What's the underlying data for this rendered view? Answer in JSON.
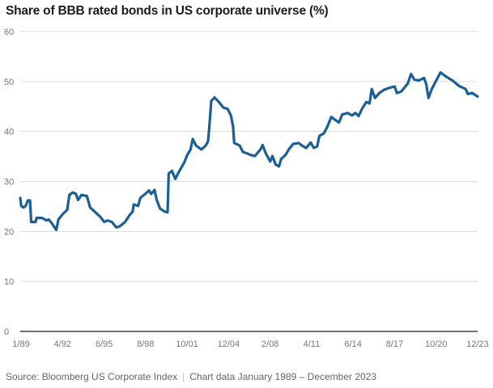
{
  "chart_data": {
    "type": "line",
    "title": "Share of BBB rated bonds in US corporate universe (%)",
    "xlabel": "",
    "ylabel": "",
    "ylim": [
      0,
      60
    ],
    "yticks": [
      0,
      10,
      20,
      30,
      40,
      50,
      60
    ],
    "xlim": [
      "1989-01",
      "2023-12"
    ],
    "xtick_labels": [
      "1/89",
      "4/92",
      "6/95",
      "8/98",
      "10/01",
      "12/04",
      "2/08",
      "4/11",
      "6/14",
      "8/17",
      "10/20",
      "12/23"
    ],
    "grid": "horizontal",
    "line_color": "#1b5f97",
    "series": [
      {
        "points": [
          [
            "1989-01",
            26.7
          ],
          [
            "1989-02",
            25.1
          ],
          [
            "1989-04",
            24.8
          ],
          [
            "1989-06",
            25.1
          ],
          [
            "1989-08",
            26.2
          ],
          [
            "1989-10",
            26.2
          ],
          [
            "1989-11",
            21.9
          ],
          [
            "1990-03",
            21.9
          ],
          [
            "1990-04",
            22.7
          ],
          [
            "1990-09",
            22.7
          ],
          [
            "1991-01",
            22.2
          ],
          [
            "1991-03",
            22.4
          ],
          [
            "1991-06",
            21.6
          ],
          [
            "1991-10",
            20.3
          ],
          [
            "1991-12",
            22.4
          ],
          [
            "1992-04",
            23.5
          ],
          [
            "1992-08",
            24.3
          ],
          [
            "1992-10",
            27.3
          ],
          [
            "1993-01",
            27.8
          ],
          [
            "1993-04",
            27.5
          ],
          [
            "1993-06",
            26.3
          ],
          [
            "1993-09",
            27.3
          ],
          [
            "1994-02",
            27.1
          ],
          [
            "1994-05",
            24.8
          ],
          [
            "1994-10",
            23.8
          ],
          [
            "1995-02",
            23.0
          ],
          [
            "1995-06",
            21.9
          ],
          [
            "1995-09",
            22.2
          ],
          [
            "1996-01",
            21.9
          ],
          [
            "1996-05",
            20.8
          ],
          [
            "1996-08",
            21.0
          ],
          [
            "1997-01",
            21.9
          ],
          [
            "1997-05",
            23.2
          ],
          [
            "1997-08",
            24.0
          ],
          [
            "1997-09",
            25.4
          ],
          [
            "1998-01",
            25.1
          ],
          [
            "1998-03",
            26.7
          ],
          [
            "1998-08",
            27.6
          ],
          [
            "1998-11",
            28.2
          ],
          [
            "1999-01",
            27.5
          ],
          [
            "1999-04",
            28.3
          ],
          [
            "1999-06",
            26.3
          ],
          [
            "1999-09",
            24.6
          ],
          [
            "2000-01",
            24.0
          ],
          [
            "2000-04",
            23.8
          ],
          [
            "2000-05",
            31.6
          ],
          [
            "2000-08",
            32.1
          ],
          [
            "2000-11",
            30.5
          ],
          [
            "2001-02",
            31.8
          ],
          [
            "2001-07",
            33.7
          ],
          [
            "2001-10",
            35.3
          ],
          [
            "2002-01",
            36.4
          ],
          [
            "2002-03",
            38.5
          ],
          [
            "2002-06",
            37.2
          ],
          [
            "2002-11",
            36.4
          ],
          [
            "2003-03",
            37.2
          ],
          [
            "2003-05",
            38.0
          ],
          [
            "2003-06",
            40.3
          ],
          [
            "2003-08",
            46.1
          ],
          [
            "2003-11",
            46.8
          ],
          [
            "2004-03",
            45.9
          ],
          [
            "2004-07",
            44.8
          ],
          [
            "2004-11",
            44.5
          ],
          [
            "2005-02",
            43.2
          ],
          [
            "2005-04",
            41.0
          ],
          [
            "2005-05",
            37.7
          ],
          [
            "2005-10",
            37.2
          ],
          [
            "2006-01",
            35.9
          ],
          [
            "2006-05",
            35.6
          ],
          [
            "2006-08",
            35.3
          ],
          [
            "2006-12",
            35.1
          ],
          [
            "2007-05",
            36.4
          ],
          [
            "2007-07",
            37.3
          ],
          [
            "2007-10",
            35.6
          ],
          [
            "2008-02",
            34.0
          ],
          [
            "2008-04",
            35.1
          ],
          [
            "2008-07",
            33.4
          ],
          [
            "2008-10",
            33.0
          ],
          [
            "2008-12",
            34.5
          ],
          [
            "2009-04",
            35.3
          ],
          [
            "2009-07",
            36.4
          ],
          [
            "2009-11",
            37.5
          ],
          [
            "2010-04",
            37.7
          ],
          [
            "2010-07",
            37.2
          ],
          [
            "2010-11",
            36.7
          ],
          [
            "2011-03",
            37.8
          ],
          [
            "2011-06",
            36.7
          ],
          [
            "2011-09",
            37.0
          ],
          [
            "2011-11",
            39.1
          ],
          [
            "2012-03",
            39.6
          ],
          [
            "2012-06",
            40.8
          ],
          [
            "2012-10",
            42.9
          ],
          [
            "2013-01",
            42.4
          ],
          [
            "2013-05",
            41.8
          ],
          [
            "2013-08",
            43.4
          ],
          [
            "2014-01",
            43.7
          ],
          [
            "2014-05",
            43.2
          ],
          [
            "2014-08",
            43.7
          ],
          [
            "2014-11",
            43.1
          ],
          [
            "2015-02",
            44.5
          ],
          [
            "2015-06",
            45.9
          ],
          [
            "2015-09",
            45.6
          ],
          [
            "2015-11",
            48.5
          ],
          [
            "2016-02",
            46.7
          ],
          [
            "2016-06",
            47.7
          ],
          [
            "2016-10",
            48.3
          ],
          [
            "2017-04",
            48.8
          ],
          [
            "2017-08",
            49.0
          ],
          [
            "2017-10",
            47.7
          ],
          [
            "2018-02",
            48.0
          ],
          [
            "2018-08",
            49.6
          ],
          [
            "2018-11",
            51.5
          ],
          [
            "2019-02",
            50.4
          ],
          [
            "2019-06",
            50.2
          ],
          [
            "2019-11",
            50.7
          ],
          [
            "2020-01",
            49.4
          ],
          [
            "2020-03",
            46.7
          ],
          [
            "2020-06",
            48.5
          ],
          [
            "2020-10",
            50.2
          ],
          [
            "2021-02",
            51.8
          ],
          [
            "2021-07",
            51.0
          ],
          [
            "2022-01",
            50.2
          ],
          [
            "2022-07",
            49.1
          ],
          [
            "2023-01",
            48.5
          ],
          [
            "2023-03",
            47.5
          ],
          [
            "2023-07",
            47.7
          ],
          [
            "2023-12",
            47.0
          ]
        ]
      }
    ]
  },
  "footer": {
    "source": "Source: Bloomberg US Corporate Index",
    "separator": "|",
    "note": "Chart data January 1989 – December 2023"
  }
}
